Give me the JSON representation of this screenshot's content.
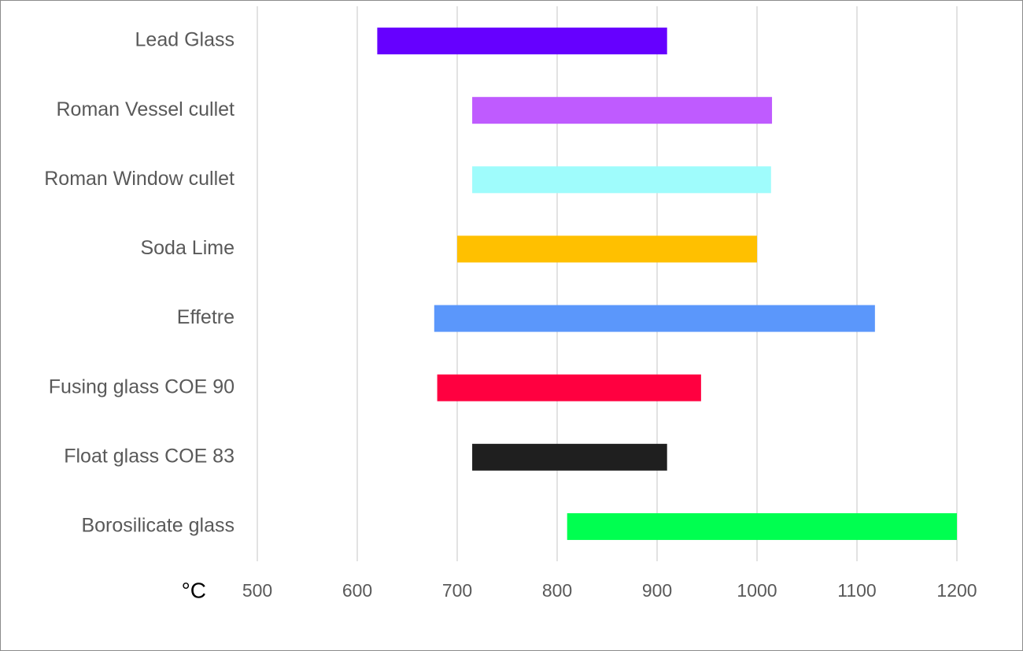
{
  "chart_data": {
    "type": "range-bar",
    "x_label": "°C",
    "categories": [
      "Lead Glass",
      "Roman Vessel cullet",
      "Roman Window cullet",
      "Soda Lime",
      "Effetre",
      "Fusing glass COE 90",
      "Float glass COE 83",
      "Borosilicate glass"
    ],
    "start": [
      620,
      715,
      715,
      700,
      677,
      680,
      715,
      810
    ],
    "end": [
      910,
      1015,
      1014,
      1000,
      1118,
      944,
      910,
      1200
    ],
    "colors": [
      "#6600ff",
      "#bf5bff",
      "#9ffcfc",
      "#ffc000",
      "#5b97fb",
      "#ff0040",
      "#1f1f1f",
      "#00ff50"
    ],
    "xlim": [
      500,
      1200
    ],
    "xticks": [
      500,
      600,
      700,
      800,
      900,
      1000,
      1100,
      1200
    ],
    "grid": true
  }
}
